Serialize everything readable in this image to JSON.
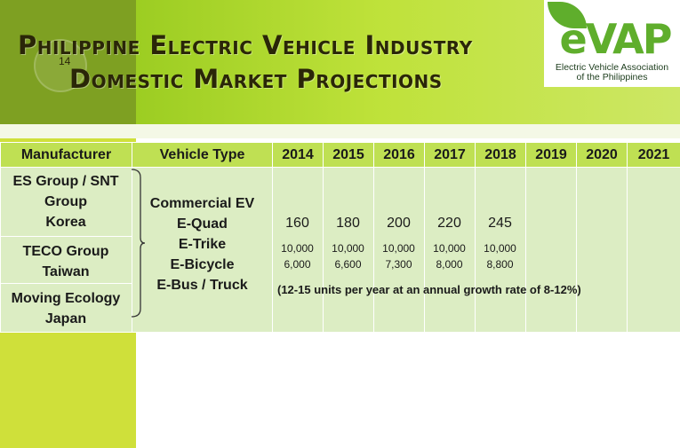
{
  "slide": {
    "page_number": "14",
    "title_line1": "Philippine Electric Vehicle Industry",
    "title_line2": "Domestic Market Projections"
  },
  "logo": {
    "wordmark": "eVAP",
    "org_line1": "Electric Vehicle Association",
    "org_line2": "of the Philippines",
    "color": "#5fae2c"
  },
  "table": {
    "headers": {
      "manufacturer": "Manufacturer",
      "vehicle_type": "Vehicle Type",
      "years": [
        "2014",
        "2015",
        "2016",
        "2017",
        "2018",
        "2019",
        "2020",
        "2021"
      ]
    },
    "manufacturers": [
      {
        "name_line1": "ES Group / SNT",
        "name_line2": "Group",
        "country": "Korea"
      },
      {
        "name_line1": "TECO Group",
        "country": "Taiwan"
      },
      {
        "name_line1": "Moving Ecology",
        "country": "Japan"
      }
    ],
    "vehicle_types": [
      "Commercial EV",
      "E-Quad",
      "E-Trike",
      "E-Bicycle",
      "E-Bus / Truck"
    ],
    "e_quad": [
      "160",
      "180",
      "200",
      "220",
      "245"
    ],
    "e_trike": [
      "10,000",
      "10,000",
      "10,000",
      "10,000",
      "10,000"
    ],
    "e_bicycle": [
      "6,000",
      "6,600",
      "7,300",
      "8,000",
      "8,800"
    ],
    "e_bus_note": "(12-15 units per year at an annual growth rate of 8-12%)"
  },
  "colors": {
    "header_bg": "#bfe053",
    "cell_bg": "#dcedc3",
    "accent_lime": "#cfe03a",
    "accent_dark": "#7ea022"
  }
}
